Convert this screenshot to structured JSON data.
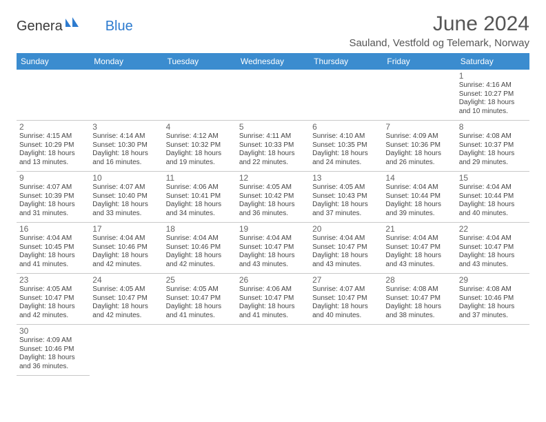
{
  "logo": {
    "text1": "Genera",
    "text2": "Blue",
    "brand_color": "#2d7bcf"
  },
  "title": "June 2024",
  "location": "Sauland, Vestfold og Telemark, Norway",
  "colors": {
    "header_bg": "#3b8ccf",
    "header_text": "#ffffff",
    "border": "#c8c8c8",
    "text": "#444444"
  },
  "weekdays": [
    "Sunday",
    "Monday",
    "Tuesday",
    "Wednesday",
    "Thursday",
    "Friday",
    "Saturday"
  ],
  "weeks": [
    [
      null,
      null,
      null,
      null,
      null,
      null,
      {
        "d": "1",
        "sr": "Sunrise: 4:16 AM",
        "ss": "Sunset: 10:27 PM",
        "dl1": "Daylight: 18 hours",
        "dl2": "and 10 minutes."
      }
    ],
    [
      {
        "d": "2",
        "sr": "Sunrise: 4:15 AM",
        "ss": "Sunset: 10:29 PM",
        "dl1": "Daylight: 18 hours",
        "dl2": "and 13 minutes."
      },
      {
        "d": "3",
        "sr": "Sunrise: 4:14 AM",
        "ss": "Sunset: 10:30 PM",
        "dl1": "Daylight: 18 hours",
        "dl2": "and 16 minutes."
      },
      {
        "d": "4",
        "sr": "Sunrise: 4:12 AM",
        "ss": "Sunset: 10:32 PM",
        "dl1": "Daylight: 18 hours",
        "dl2": "and 19 minutes."
      },
      {
        "d": "5",
        "sr": "Sunrise: 4:11 AM",
        "ss": "Sunset: 10:33 PM",
        "dl1": "Daylight: 18 hours",
        "dl2": "and 22 minutes."
      },
      {
        "d": "6",
        "sr": "Sunrise: 4:10 AM",
        "ss": "Sunset: 10:35 PM",
        "dl1": "Daylight: 18 hours",
        "dl2": "and 24 minutes."
      },
      {
        "d": "7",
        "sr": "Sunrise: 4:09 AM",
        "ss": "Sunset: 10:36 PM",
        "dl1": "Daylight: 18 hours",
        "dl2": "and 26 minutes."
      },
      {
        "d": "8",
        "sr": "Sunrise: 4:08 AM",
        "ss": "Sunset: 10:37 PM",
        "dl1": "Daylight: 18 hours",
        "dl2": "and 29 minutes."
      }
    ],
    [
      {
        "d": "9",
        "sr": "Sunrise: 4:07 AM",
        "ss": "Sunset: 10:39 PM",
        "dl1": "Daylight: 18 hours",
        "dl2": "and 31 minutes."
      },
      {
        "d": "10",
        "sr": "Sunrise: 4:07 AM",
        "ss": "Sunset: 10:40 PM",
        "dl1": "Daylight: 18 hours",
        "dl2": "and 33 minutes."
      },
      {
        "d": "11",
        "sr": "Sunrise: 4:06 AM",
        "ss": "Sunset: 10:41 PM",
        "dl1": "Daylight: 18 hours",
        "dl2": "and 34 minutes."
      },
      {
        "d": "12",
        "sr": "Sunrise: 4:05 AM",
        "ss": "Sunset: 10:42 PM",
        "dl1": "Daylight: 18 hours",
        "dl2": "and 36 minutes."
      },
      {
        "d": "13",
        "sr": "Sunrise: 4:05 AM",
        "ss": "Sunset: 10:43 PM",
        "dl1": "Daylight: 18 hours",
        "dl2": "and 37 minutes."
      },
      {
        "d": "14",
        "sr": "Sunrise: 4:04 AM",
        "ss": "Sunset: 10:44 PM",
        "dl1": "Daylight: 18 hours",
        "dl2": "and 39 minutes."
      },
      {
        "d": "15",
        "sr": "Sunrise: 4:04 AM",
        "ss": "Sunset: 10:44 PM",
        "dl1": "Daylight: 18 hours",
        "dl2": "and 40 minutes."
      }
    ],
    [
      {
        "d": "16",
        "sr": "Sunrise: 4:04 AM",
        "ss": "Sunset: 10:45 PM",
        "dl1": "Daylight: 18 hours",
        "dl2": "and 41 minutes."
      },
      {
        "d": "17",
        "sr": "Sunrise: 4:04 AM",
        "ss": "Sunset: 10:46 PM",
        "dl1": "Daylight: 18 hours",
        "dl2": "and 42 minutes."
      },
      {
        "d": "18",
        "sr": "Sunrise: 4:04 AM",
        "ss": "Sunset: 10:46 PM",
        "dl1": "Daylight: 18 hours",
        "dl2": "and 42 minutes."
      },
      {
        "d": "19",
        "sr": "Sunrise: 4:04 AM",
        "ss": "Sunset: 10:47 PM",
        "dl1": "Daylight: 18 hours",
        "dl2": "and 43 minutes."
      },
      {
        "d": "20",
        "sr": "Sunrise: 4:04 AM",
        "ss": "Sunset: 10:47 PM",
        "dl1": "Daylight: 18 hours",
        "dl2": "and 43 minutes."
      },
      {
        "d": "21",
        "sr": "Sunrise: 4:04 AM",
        "ss": "Sunset: 10:47 PM",
        "dl1": "Daylight: 18 hours",
        "dl2": "and 43 minutes."
      },
      {
        "d": "22",
        "sr": "Sunrise: 4:04 AM",
        "ss": "Sunset: 10:47 PM",
        "dl1": "Daylight: 18 hours",
        "dl2": "and 43 minutes."
      }
    ],
    [
      {
        "d": "23",
        "sr": "Sunrise: 4:05 AM",
        "ss": "Sunset: 10:47 PM",
        "dl1": "Daylight: 18 hours",
        "dl2": "and 42 minutes."
      },
      {
        "d": "24",
        "sr": "Sunrise: 4:05 AM",
        "ss": "Sunset: 10:47 PM",
        "dl1": "Daylight: 18 hours",
        "dl2": "and 42 minutes."
      },
      {
        "d": "25",
        "sr": "Sunrise: 4:05 AM",
        "ss": "Sunset: 10:47 PM",
        "dl1": "Daylight: 18 hours",
        "dl2": "and 41 minutes."
      },
      {
        "d": "26",
        "sr": "Sunrise: 4:06 AM",
        "ss": "Sunset: 10:47 PM",
        "dl1": "Daylight: 18 hours",
        "dl2": "and 41 minutes."
      },
      {
        "d": "27",
        "sr": "Sunrise: 4:07 AM",
        "ss": "Sunset: 10:47 PM",
        "dl1": "Daylight: 18 hours",
        "dl2": "and 40 minutes."
      },
      {
        "d": "28",
        "sr": "Sunrise: 4:08 AM",
        "ss": "Sunset: 10:47 PM",
        "dl1": "Daylight: 18 hours",
        "dl2": "and 38 minutes."
      },
      {
        "d": "29",
        "sr": "Sunrise: 4:08 AM",
        "ss": "Sunset: 10:46 PM",
        "dl1": "Daylight: 18 hours",
        "dl2": "and 37 minutes."
      }
    ],
    [
      {
        "d": "30",
        "sr": "Sunrise: 4:09 AM",
        "ss": "Sunset: 10:46 PM",
        "dl1": "Daylight: 18 hours",
        "dl2": "and 36 minutes."
      },
      null,
      null,
      null,
      null,
      null,
      null
    ]
  ]
}
